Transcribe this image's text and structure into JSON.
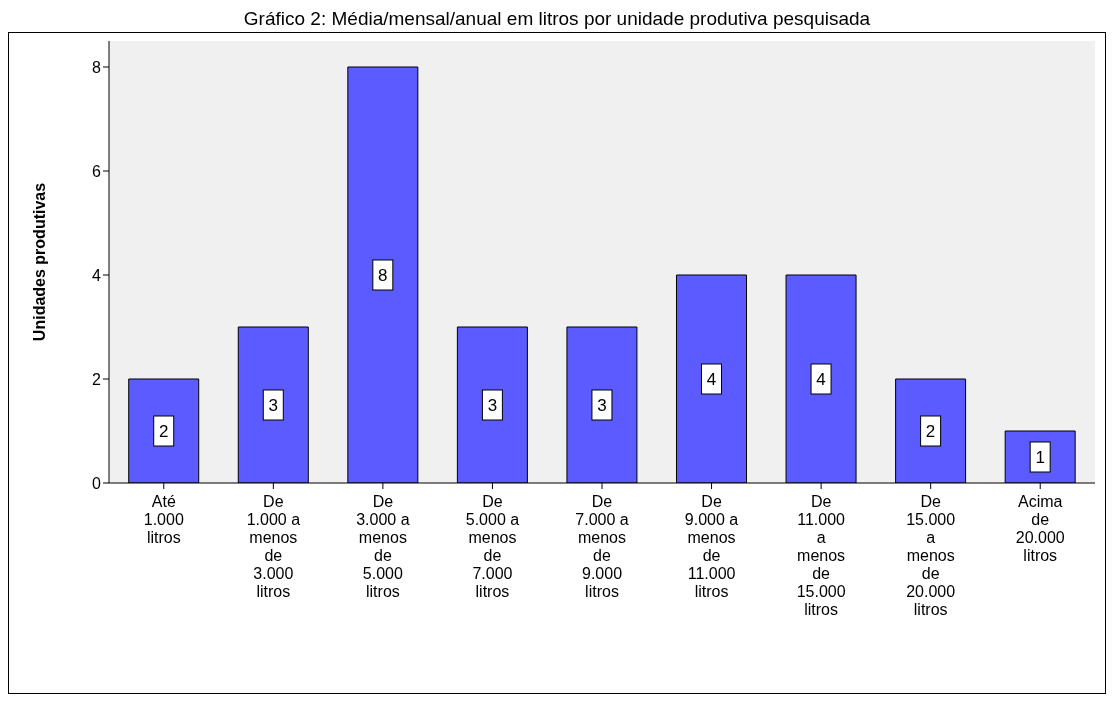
{
  "chart_data": {
    "type": "bar",
    "title": "Gráfico 2: Média/mensal/anual em litros por unidade produtiva pesquisada",
    "ylabel": "Unidades produtivas",
    "categories": [
      "Até 1.000 litros",
      "De 1.000 a menos de 3.000 litros",
      "De 3.000 a menos de 5.000 litros",
      "De 5.000 a menos de 7.000 litros",
      "De 7.000 a menos de 9.000 litros",
      "De 9.000 a menos de 11.000 litros",
      "De 11.000 a menos de 15.000 litros",
      "De 15.000 a menos de 20.000 litros",
      "Acima de 20.000 litros"
    ],
    "values": [
      2,
      3,
      8,
      3,
      3,
      4,
      4,
      2,
      1
    ],
    "color": "#5b5bff",
    "ylim": [
      0,
      8.5
    ],
    "yticks": [
      0,
      2,
      4,
      6,
      8
    ],
    "data_labels": true,
    "grid": false,
    "legend": false
  }
}
